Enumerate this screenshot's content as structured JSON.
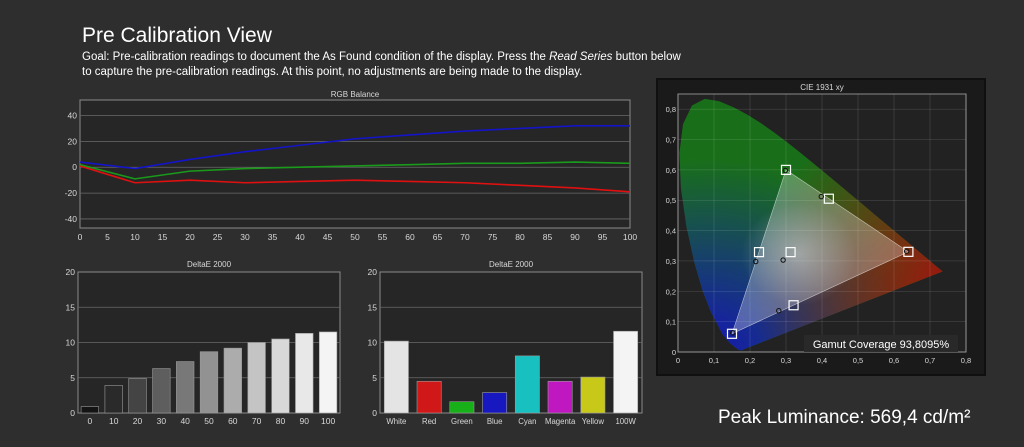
{
  "page": {
    "title": "Pre Calibration View",
    "goal_prefix": "Goal: Pre-calibration readings to document the As Found condition of the display. Press the ",
    "goal_emph": "Read Series",
    "goal_suffix": " button below to capture the pre-calibration readings. At this point, no adjustments are being made to the display."
  },
  "peak_luminance": "Peak Luminance: 569,4 cd/m²",
  "colors": {
    "red": "#e01010",
    "green": "#1a9a1a",
    "blue": "#1414c8"
  },
  "chart_data": [
    {
      "id": "rgb_balance",
      "type": "line",
      "title": "RGB Balance",
      "x": [
        0,
        10,
        20,
        30,
        40,
        50,
        60,
        70,
        80,
        90,
        100
      ],
      "xticks": [
        0,
        5,
        10,
        15,
        20,
        25,
        30,
        35,
        40,
        45,
        50,
        55,
        60,
        65,
        70,
        75,
        80,
        85,
        90,
        95,
        100
      ],
      "yticks": [
        40,
        20,
        0,
        -20,
        -40
      ],
      "xlim": [
        0,
        100
      ],
      "ylim": [
        -47,
        52
      ],
      "grid": true,
      "series": [
        {
          "color": "#e01010",
          "values": [
            1,
            -12,
            -10,
            -12,
            -11,
            -10,
            -11,
            -12,
            -14,
            -16,
            -19
          ]
        },
        {
          "color": "#1a9a1a",
          "values": [
            2,
            -9,
            -3,
            -1,
            0,
            1,
            2,
            3,
            3,
            4,
            3
          ]
        },
        {
          "color": "#1414c8",
          "values": [
            4,
            -1,
            6,
            12,
            17,
            22,
            25,
            28,
            30,
            32,
            32
          ]
        }
      ]
    },
    {
      "id": "deltae_grayscale",
      "type": "bar",
      "title": "DeltaE 2000",
      "categories": [
        "0",
        "10",
        "20",
        "30",
        "40",
        "50",
        "60",
        "70",
        "80",
        "90",
        "100"
      ],
      "values": [
        0.9,
        3.9,
        4.9,
        6.3,
        7.3,
        8.7,
        9.2,
        10.0,
        10.5,
        11.3,
        11.5
      ],
      "bar_colors": [
        "#141414",
        "#2a2a2a",
        "#444444",
        "#5e5e5e",
        "#787878",
        "#929292",
        "#acacac",
        "#c4c4c4",
        "#d8d8d8",
        "#e8e8e8",
        "#f4f4f4"
      ],
      "yticks": [
        0,
        5,
        10,
        15,
        20
      ],
      "ylim": [
        0,
        20
      ],
      "grid": true
    },
    {
      "id": "deltae_colors",
      "type": "bar",
      "title": "DeltaE 2000",
      "categories": [
        "White",
        "Red",
        "Green",
        "Blue",
        "Cyan",
        "Magenta",
        "Yellow",
        "100W"
      ],
      "values": [
        10.2,
        4.5,
        1.6,
        2.9,
        8.1,
        4.5,
        5.1,
        11.6
      ],
      "bar_colors": [
        "#e4e4e4",
        "#d01818",
        "#18b018",
        "#1818c0",
        "#18c0c0",
        "#c018c0",
        "#c8c818",
        "#f4f4f4"
      ],
      "yticks": [
        0,
        5,
        10,
        15,
        20
      ],
      "ylim": [
        0,
        20
      ],
      "grid": true
    },
    {
      "id": "cie_1931",
      "type": "scatter",
      "title": "CIE 1931 xy",
      "xticks": [
        "0",
        "0,1",
        "0,2",
        "0,3",
        "0,4",
        "0,5",
        "0,6",
        "0,7",
        "0,8"
      ],
      "yticks": [
        "0,8",
        "0,7",
        "0,6",
        "0,5",
        "0,4",
        "0,3",
        "0,2",
        "0,1",
        "0"
      ],
      "xlim": [
        0,
        0.8
      ],
      "ylim": [
        0,
        0.85
      ],
      "grid": true,
      "target_gamut": {
        "red": [
          0.64,
          0.33
        ],
        "green": [
          0.3,
          0.6
        ],
        "blue": [
          0.15,
          0.06
        ],
        "white": [
          0.3127,
          0.329
        ]
      },
      "targets": [
        [
          0.64,
          0.33
        ],
        [
          0.3,
          0.6
        ],
        [
          0.15,
          0.06
        ],
        [
          0.225,
          0.329
        ],
        [
          0.321,
          0.154
        ],
        [
          0.419,
          0.505
        ],
        [
          0.3127,
          0.329
        ]
      ],
      "measured": [
        [
          0.635,
          0.332
        ],
        [
          0.298,
          0.598
        ],
        [
          0.152,
          0.063
        ],
        [
          0.216,
          0.298
        ],
        [
          0.28,
          0.136
        ],
        [
          0.398,
          0.512
        ],
        [
          0.292,
          0.303
        ]
      ],
      "gamut_coverage": "Gamut Coverage 93,8095%"
    }
  ]
}
